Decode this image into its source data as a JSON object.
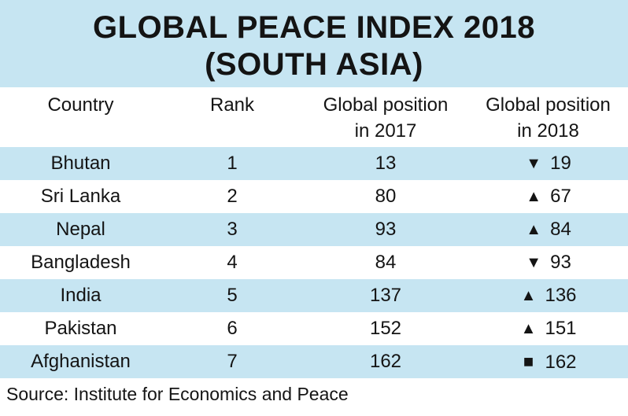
{
  "title": {
    "line1": "GLOBAL PEACE INDEX 2018",
    "line2": "(SOUTH ASIA)"
  },
  "headers": {
    "country": "Country",
    "rank": "Rank",
    "pos2017_l1": "Global position",
    "pos2017_l2": "in 2017",
    "pos2018_l1": "Global position",
    "pos2018_l2": "in 2018"
  },
  "chart_data": {
    "type": "table",
    "title": "GLOBAL PEACE INDEX 2018 (SOUTH ASIA)",
    "columns": [
      "Country",
      "Rank",
      "Global position in 2017",
      "Global position in 2018"
    ],
    "rows": [
      {
        "country": "Bhutan",
        "rank": "1",
        "pos2017": "13",
        "trend": "▼",
        "pos2018": "19"
      },
      {
        "country": "Sri Lanka",
        "rank": "2",
        "pos2017": "80",
        "trend": "▲",
        "pos2018": "67"
      },
      {
        "country": "Nepal",
        "rank": "3",
        "pos2017": "93",
        "trend": "▲",
        "pos2018": "84"
      },
      {
        "country": "Bangladesh",
        "rank": "4",
        "pos2017": "84",
        "trend": "▼",
        "pos2018": "93"
      },
      {
        "country": "India",
        "rank": "5",
        "pos2017": "137",
        "trend": "▲",
        "pos2018": "136"
      },
      {
        "country": "Pakistan",
        "rank": "6",
        "pos2017": "152",
        "trend": "▲",
        "pos2018": "151"
      },
      {
        "country": "Afghanistan",
        "rank": "7",
        "pos2017": "162",
        "trend": "■",
        "pos2018": "162"
      }
    ]
  },
  "source": "Source: Institute for Economics and Peace",
  "colors": {
    "band": "#c6e5f2",
    "text": "#141414"
  }
}
